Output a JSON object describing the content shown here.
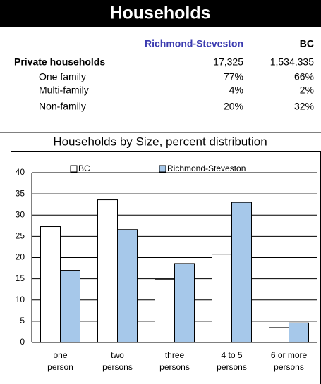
{
  "header": {
    "title": "Households"
  },
  "table": {
    "columns": [
      "Richmond-Steveston",
      "BC"
    ],
    "rows": [
      [
        "Private households",
        "17,325",
        "1,534,335"
      ],
      [
        "One family",
        "77%",
        "66%"
      ],
      [
        "Multi-family",
        "4%",
        "2%"
      ],
      [
        "Non-family",
        "20%",
        "32%"
      ]
    ]
  },
  "chart_data": {
    "type": "bar",
    "title": "Households by Size, percent distribution",
    "categories": [
      "one\nperson",
      "two\npersons",
      "three\npersons",
      "4 to 5\npersons",
      "6 or  more\npersons"
    ],
    "series": [
      {
        "name": "BC",
        "color": "#ffffff",
        "values": [
          27.3,
          33.6,
          14.8,
          20.8,
          3.5
        ]
      },
      {
        "name": "Richmond-Steveston",
        "color": "#a6c8ea",
        "values": [
          17,
          26.6,
          18.6,
          33,
          4.6
        ]
      }
    ],
    "ylim": [
      0,
      40
    ],
    "yticks": [
      0,
      5,
      10,
      15,
      20,
      25,
      30,
      35,
      40
    ],
    "grid": true,
    "legend": "top"
  }
}
